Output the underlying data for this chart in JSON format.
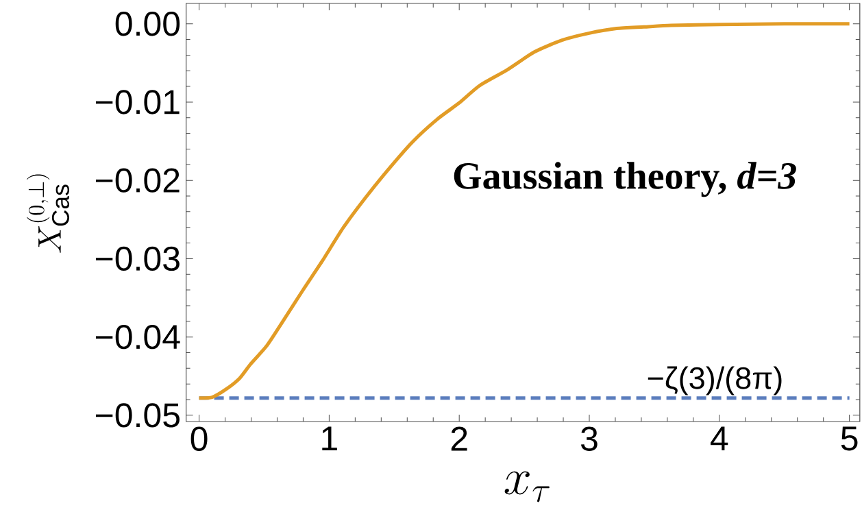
{
  "chart_data": {
    "type": "line",
    "xlabel": "x_{\\tau}",
    "ylabel": "X^{(0,\\perp)}_{\\mathrm{Cas}}",
    "x": [
      0,
      0.1,
      0.205,
      0.31,
      0.394,
      0.521,
      0.648,
      0.795,
      0.943,
      1.11,
      1.28,
      1.45,
      1.64,
      1.83,
      2.0,
      2.156,
      2.367,
      2.578,
      2.79,
      3.0,
      3.21,
      3.42,
      3.63,
      4.0,
      4.5,
      5.0
    ],
    "series": [
      {
        "color": "#e29c26",
        "values": [
          -0.0478,
          -0.0477,
          -0.0467,
          -0.0453,
          -0.0435,
          -0.0411,
          -0.0379,
          -0.0341,
          -0.0304,
          -0.026,
          -0.0222,
          -0.0187,
          -0.0151,
          -0.0122,
          -0.0101,
          -0.0079,
          -0.0059,
          -0.0036,
          -0.0021,
          -0.0012,
          -0.0006,
          -0.0004,
          -0.0002,
          -0.0001,
          0.0,
          0.0
        ]
      }
    ],
    "xlim": [
      -0.1,
      5.08
    ],
    "ylim": [
      -0.0508,
      0.0026
    ],
    "xticks": [
      0,
      1,
      2,
      3,
      4,
      5
    ],
    "yticks": [
      {
        "value": 0,
        "label": "0.00"
      },
      {
        "value": -0.01,
        "label": "−0.01"
      },
      {
        "value": -0.02,
        "label": "−0.02"
      },
      {
        "value": -0.03,
        "label": "−0.03"
      },
      {
        "value": -0.04,
        "label": "−0.04"
      },
      {
        "value": -0.05,
        "label": "−0.05"
      }
    ],
    "ref_lines": [
      {
        "axis": "y",
        "value": -0.0478,
        "label": "−ζ(3)/(8π)",
        "color": "#5b7dbd",
        "line_style": "dashed"
      }
    ],
    "annotations": [
      "Gaussian theory, *d=3*"
    ],
    "line_style": "solid",
    "marker": "none",
    "grid": false
  }
}
